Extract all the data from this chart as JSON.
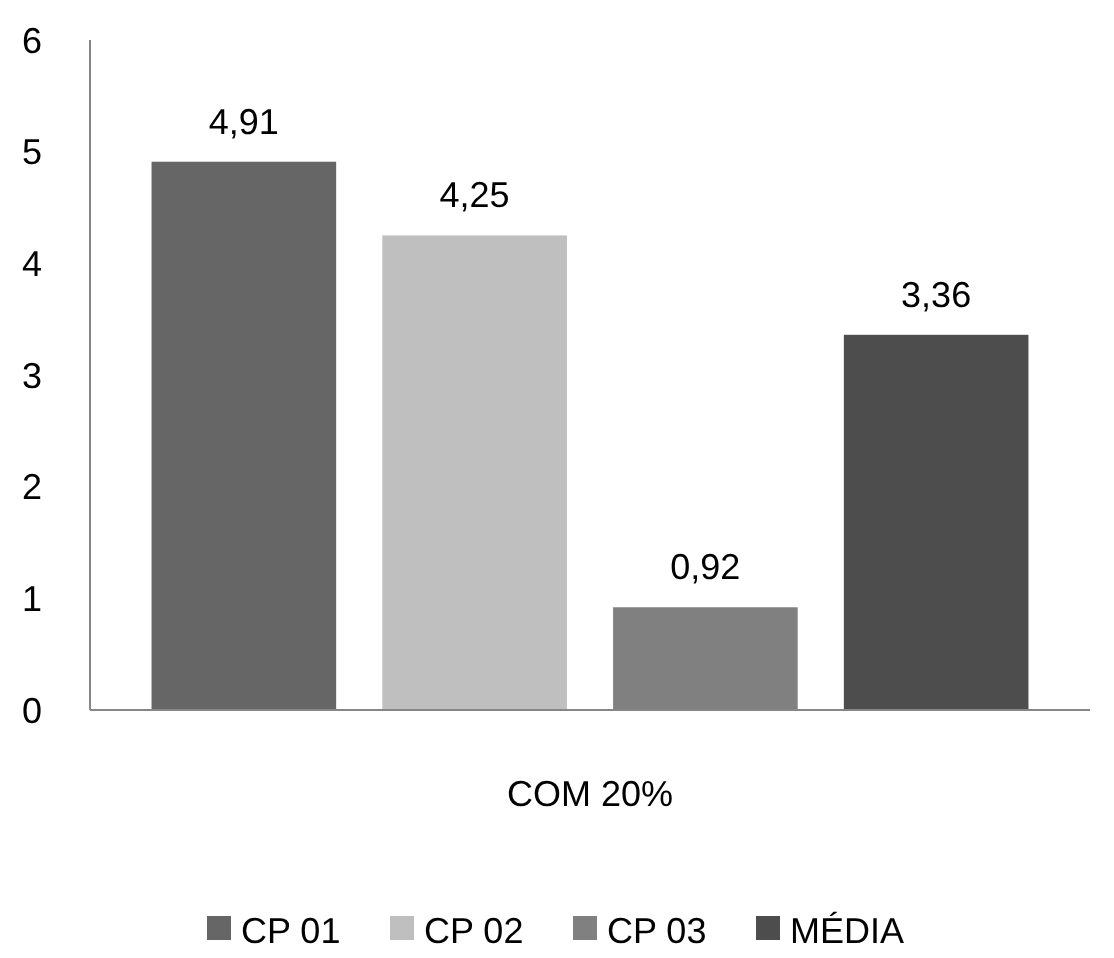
{
  "chart_data": {
    "type": "bar",
    "categories": [
      "COM 20%"
    ],
    "series": [
      {
        "name": "CP 01",
        "color": "#666666",
        "values": [
          4.91
        ],
        "value_labels": [
          "4,91"
        ]
      },
      {
        "name": "CP 02",
        "color": "#bfbfbf",
        "values": [
          4.25
        ],
        "value_labels": [
          "4,25"
        ]
      },
      {
        "name": "CP 03",
        "color": "#808080",
        "values": [
          0.92
        ],
        "value_labels": [
          "0,92"
        ]
      },
      {
        "name": "MÉDIA",
        "color": "#4d4d4d",
        "values": [
          3.36
        ],
        "value_labels": [
          "3,36"
        ]
      }
    ],
    "ylim": [
      0,
      6
    ],
    "yticks": [
      0,
      1,
      2,
      3,
      4,
      5,
      6
    ],
    "grid": false,
    "legend": "bottom"
  }
}
